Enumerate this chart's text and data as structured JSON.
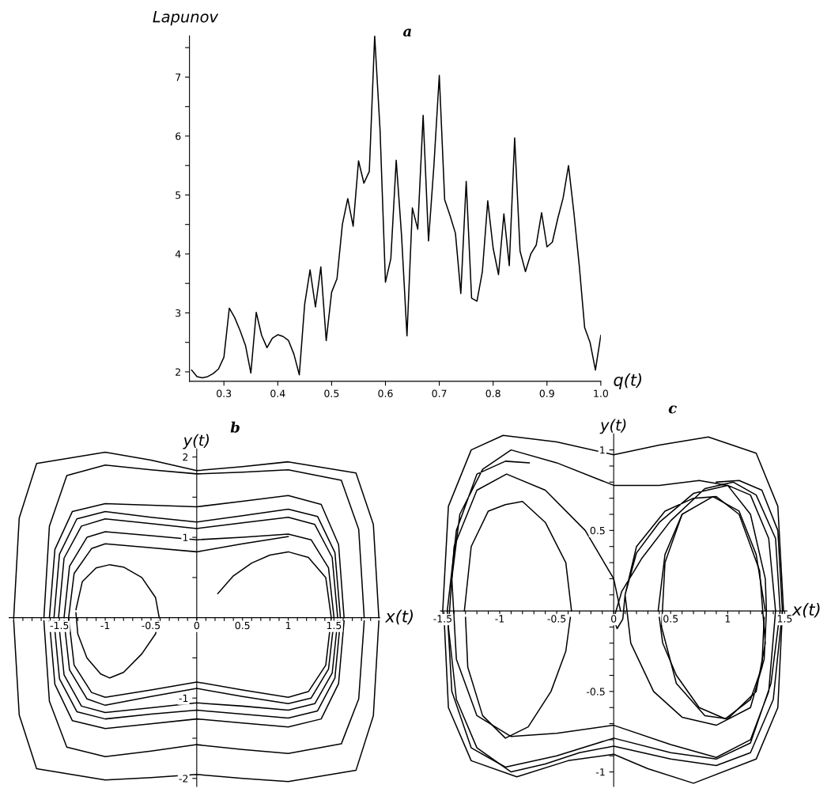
{
  "chart_data": [
    {
      "type": "line",
      "title": "a",
      "xlabel": "q(t)",
      "ylabel": "Lapunov",
      "xlim": [
        0.236,
        1.0
      ],
      "ylim": [
        1.84,
        7.7
      ],
      "xticks": [
        0.3,
        0.4,
        0.5,
        0.6,
        0.7,
        0.8,
        0.9,
        {
          "value": 1,
          "label": "1.0"
        }
      ],
      "yticks": [
        2,
        {
          "value": 2.5,
          "label": null
        },
        3,
        {
          "value": 3.5,
          "label": null
        },
        4,
        {
          "value": 4.5,
          "label": null
        },
        5,
        {
          "value": 5.5,
          "label": null
        },
        6,
        {
          "value": 6.5,
          "label": null
        },
        7,
        {
          "value": 7.5,
          "label": null
        }
      ],
      "x": [
        0.24,
        0.25,
        0.26,
        0.27,
        0.28,
        0.29,
        0.3,
        0.31,
        0.32,
        0.33,
        0.34,
        0.35,
        0.36,
        0.37,
        0.38,
        0.39,
        0.4,
        0.41,
        0.42,
        0.43,
        0.44,
        0.45,
        0.46,
        0.47,
        0.48,
        0.49,
        0.5,
        0.51,
        0.52,
        0.53,
        0.54,
        0.55,
        0.56,
        0.57,
        0.58,
        0.59,
        0.6,
        0.61,
        0.62,
        0.63,
        0.64,
        0.65,
        0.66,
        0.67,
        0.68,
        0.69,
        0.7,
        0.71,
        0.72,
        0.73,
        0.74,
        0.75,
        0.76,
        0.77,
        0.78,
        0.79,
        0.8,
        0.81,
        0.82,
        0.83,
        0.84,
        0.85,
        0.86,
        0.87,
        0.88,
        0.89,
        0.9,
        0.91,
        0.92,
        0.93,
        0.94,
        0.95,
        0.96,
        0.97,
        0.98,
        0.99,
        1.0
      ],
      "series": [
        {
          "color": "#000000",
          "values": [
            2.03,
            1.92,
            1.9,
            1.92,
            1.97,
            2.05,
            2.25,
            3.08,
            2.92,
            2.7,
            2.45,
            1.98,
            3.01,
            2.62,
            2.41,
            2.57,
            2.63,
            2.6,
            2.53,
            2.3,
            1.95,
            3.15,
            3.73,
            3.1,
            3.78,
            2.53,
            3.35,
            3.58,
            4.5,
            4.94,
            4.47,
            5.58,
            5.2,
            5.4,
            7.7,
            6.1,
            3.52,
            3.92,
            5.59,
            4.3,
            2.61,
            4.78,
            4.42,
            6.35,
            4.22,
            5.5,
            7.03,
            4.92,
            4.65,
            4.35,
            3.33,
            5.23,
            3.25,
            3.2,
            3.7,
            4.9,
            4.1,
            3.65,
            4.68,
            3.8,
            5.97,
            4.05,
            3.7,
            4.0,
            4.15,
            4.7,
            4.12,
            4.2,
            4.6,
            4.95,
            5.5,
            4.7,
            3.8,
            2.75,
            2.5,
            2.03,
            2.62
          ]
        }
      ]
    },
    {
      "type": "line",
      "title": "b",
      "xlabel": "x(t)",
      "ylabel": "y(t)",
      "xlim": [
        -2.05,
        2.0
      ],
      "ylim": [
        -2.1,
        2.1
      ],
      "xticks": [
        {
          "value": -2.0,
          "label": null
        },
        {
          "value": -1.9,
          "label": null
        },
        {
          "value": -1.8,
          "label": null
        },
        {
          "value": -1.7,
          "label": null
        },
        {
          "value": -1.6,
          "label": null
        },
        -1.5,
        {
          "value": -1.4,
          "label": null
        },
        {
          "value": -1.3,
          "label": null
        },
        {
          "value": -1.2,
          "label": null
        },
        {
          "value": -1.1,
          "label": null
        },
        -1,
        {
          "value": -0.9,
          "label": null
        },
        {
          "value": -0.8,
          "label": null
        },
        {
          "value": -0.7,
          "label": null
        },
        {
          "value": -0.6,
          "label": null
        },
        -0.5,
        {
          "value": -0.4,
          "label": null
        },
        {
          "value": -0.3,
          "label": null
        },
        {
          "value": -0.2,
          "label": null
        },
        {
          "value": -0.1,
          "label": null
        },
        0,
        {
          "value": 0.1,
          "label": null
        },
        {
          "value": 0.2,
          "label": null
        },
        {
          "value": 0.3,
          "label": null
        },
        {
          "value": 0.4,
          "label": null
        },
        0.5,
        {
          "value": 0.6,
          "label": null
        },
        {
          "value": 0.7,
          "label": null
        },
        {
          "value": 0.8,
          "label": null
        },
        {
          "value": 0.9,
          "label": null
        },
        1,
        {
          "value": 1.1,
          "label": null
        },
        {
          "value": 1.2,
          "label": null
        },
        {
          "value": 1.3,
          "label": null
        },
        {
          "value": 1.4,
          "label": null
        },
        1.5,
        {
          "value": 1.6,
          "label": null
        },
        {
          "value": 1.7,
          "label": null
        },
        {
          "value": 1.8,
          "label": null
        },
        {
          "value": 1.9,
          "label": null
        }
      ],
      "yticks": [
        2,
        {
          "value": 1.5,
          "label": null
        },
        1,
        {
          "value": 0.5,
          "label": null
        },
        {
          "value": -0.5,
          "label": null
        },
        -1,
        {
          "value": -1.5,
          "label": null
        },
        -2
      ],
      "series": [
        {
          "color": "#000000",
          "x": [
            -2.0,
            -1.94,
            -1.75,
            -1,
            -0.5,
            0,
            0.5,
            1,
            1.74,
            1.93,
            1.99
          ],
          "values": [
            0,
            1.24,
            1.92,
            2.06,
            1.96,
            1.83,
            1.88,
            1.94,
            1.8,
            1.16,
            0
          ]
        },
        {
          "color": "#000000",
          "x": [
            -2.0,
            -1.94,
            -1.75,
            -1,
            -0.5,
            0,
            0.5,
            1,
            1.74,
            1.93,
            1.99
          ],
          "values": [
            -0.04,
            -1.21,
            -1.88,
            -2.02,
            -1.99,
            -1.95,
            -2.0,
            -2.04,
            -1.9,
            -1.22,
            -0.04
          ]
        },
        {
          "color": "#000000",
          "x": [
            -1.67,
            -1.61,
            -1.42,
            -1,
            -0.5,
            0,
            0.5,
            1,
            1.58,
            1.77,
            1.83
          ],
          "values": [
            0,
            1.14,
            1.77,
            1.9,
            1.84,
            1.79,
            1.81,
            1.84,
            1.71,
            1.1,
            0
          ]
        },
        {
          "color": "#000000",
          "x": [
            -1.67,
            -1.61,
            -1.42,
            -1,
            -0.5,
            0,
            0.5,
            1,
            1.58,
            1.77,
            1.83
          ],
          "values": [
            -0.04,
            -1.04,
            -1.61,
            -1.73,
            -1.66,
            -1.58,
            -1.64,
            -1.69,
            -1.57,
            -1.01,
            -0.04
          ]
        },
        {
          "color": "#000000",
          "x": [
            -1.61,
            -1.55,
            -1.36,
            -1,
            -0.5,
            0,
            0.5,
            1,
            1.36,
            1.55,
            1.61
          ],
          "values": [
            0,
            0.85,
            1.32,
            1.42,
            1.4,
            1.38,
            1.45,
            1.52,
            1.41,
            0.91,
            0
          ]
        },
        {
          "color": "#000000",
          "x": [
            -1.61,
            -1.55,
            -1.36,
            -1,
            -0.5,
            0,
            0.5,
            1,
            1.36,
            1.55,
            1.61
          ],
          "values": [
            -0.04,
            -0.83,
            -1.28,
            -1.38,
            -1.32,
            -1.26,
            -1.31,
            -1.36,
            -1.26,
            -0.82,
            -0.04
          ]
        },
        {
          "color": "#000000",
          "x": [
            -1.56,
            -1.5,
            -1.31,
            -1,
            -0.5,
            0,
            0.5,
            1,
            1.32,
            1.51,
            1.57
          ],
          "values": [
            0,
            0.79,
            1.23,
            1.32,
            1.25,
            1.19,
            1.27,
            1.35,
            1.26,
            0.81,
            0
          ]
        },
        {
          "color": "#000000",
          "x": [
            -1.56,
            -1.5,
            -1.31,
            -1,
            -0.5,
            0,
            0.5,
            1,
            1.32,
            1.51,
            1.57
          ],
          "values": [
            -0.04,
            -0.76,
            -1.17,
            -1.26,
            -1.2,
            -1.15,
            -1.2,
            -1.25,
            -1.16,
            -0.75,
            -0.04
          ]
        },
        {
          "color": "#000000",
          "x": [
            -1.51,
            -1.45,
            -1.26,
            -1,
            -0.5,
            0,
            0.5,
            1,
            1.29,
            1.48,
            1.54
          ],
          "values": [
            0,
            0.74,
            1.14,
            1.23,
            1.17,
            1.11,
            1.18,
            1.25,
            1.16,
            0.75,
            0
          ]
        },
        {
          "color": "#000000",
          "x": [
            -1.51,
            -1.45,
            -1.26,
            -1,
            -0.5,
            0,
            0.5,
            1,
            1.29,
            1.48,
            1.54
          ],
          "values": [
            -0.04,
            -0.71,
            -1.1,
            -1.18,
            -1.12,
            -1.06,
            -1.1,
            -1.15,
            -1.07,
            -0.69,
            -0.04
          ]
        },
        {
          "color": "#000000",
          "x": [
            -1.45,
            -1.39,
            -1.2,
            -1,
            -0.5,
            0,
            0.5,
            1,
            1.25,
            1.44,
            1.5
          ],
          "values": [
            0,
            0.64,
            1.0,
            1.07,
            1.02,
            0.97,
            1.0,
            1.04,
            0.97,
            0.62,
            0
          ]
        },
        {
          "color": "#000000",
          "x": [
            -1.45,
            -1.39,
            -1.2,
            -1,
            -0.5,
            0,
            0.5,
            1,
            1.25,
            1.44,
            1.5
          ],
          "values": [
            -0.04,
            -0.65,
            -1.01,
            -1.09,
            -0.98,
            -0.88,
            -0.98,
            -1.07,
            -1.0,
            -0.64,
            -0.04
          ]
        },
        {
          "color": "#000000",
          "x": [
            0.23,
            0.4,
            0.6,
            0.8,
            1,
            1.22,
            1.41,
            1.47,
            1.41,
            1.22,
            1,
            0.5,
            0,
            -0.5,
            -1,
            -1.15,
            -1.34,
            -1.4,
            -1.34,
            -1.15,
            -1,
            -0.5,
            0,
            0.5,
            1
          ],
          "values": [
            0.3,
            0.52,
            0.68,
            0.78,
            0.82,
            0.75,
            0.5,
            0,
            -0.59,
            -0.92,
            -0.99,
            -0.9,
            -0.8,
            -0.9,
            -0.99,
            -0.93,
            -0.59,
            0,
            0.55,
            0.86,
            0.92,
            0.87,
            0.82,
            0.92,
            1.01
          ]
        },
        {
          "color": "#000000",
          "x": [
            -1.32,
            -1.25,
            -1.1,
            -0.95,
            -0.8,
            -0.6,
            -0.45,
            -0.41
          ],
          "values": [
            0.1,
            0.45,
            0.62,
            0.66,
            0.63,
            0.5,
            0.25,
            0
          ]
        },
        {
          "color": "#000000",
          "x": [
            -1.32,
            -1.3,
            -1.2,
            -1.05,
            -0.95,
            -0.8,
            -0.6,
            -0.45,
            -0.42
          ],
          "values": [
            0.06,
            -0.2,
            -0.5,
            -0.7,
            -0.75,
            -0.68,
            -0.45,
            -0.2,
            -0.04
          ]
        }
      ]
    },
    {
      "type": "line",
      "title": "c",
      "xlabel": "x(t)",
      "ylabel": "y(t)",
      "xlim": [
        -1.52,
        1.52
      ],
      "ylim": [
        -1.09,
        1.1
      ],
      "xticks": [
        -1.5,
        {
          "value": -1.4,
          "label": null
        },
        {
          "value": -1.3,
          "label": null
        },
        {
          "value": -1.2,
          "label": null
        },
        {
          "value": -1.1,
          "label": null
        },
        -1,
        {
          "value": -0.9,
          "label": null
        },
        {
          "value": -0.8,
          "label": null
        },
        {
          "value": -0.7,
          "label": null
        },
        {
          "value": -0.6,
          "label": null
        },
        -0.5,
        {
          "value": -0.4,
          "label": null
        },
        {
          "value": -0.3,
          "label": null
        },
        {
          "value": -0.2,
          "label": null
        },
        {
          "value": -0.1,
          "label": null
        },
        0,
        {
          "value": 0.1,
          "label": null
        },
        {
          "value": 0.2,
          "label": null
        },
        {
          "value": 0.3,
          "label": null
        },
        {
          "value": 0.4,
          "label": null
        },
        0.5,
        {
          "value": 0.6,
          "label": null
        },
        {
          "value": 0.7,
          "label": null
        },
        {
          "value": 0.8,
          "label": null
        },
        {
          "value": 0.9,
          "label": null
        },
        1,
        {
          "value": 1.1,
          "label": null
        },
        {
          "value": 1.2,
          "label": null
        },
        {
          "value": 1.3,
          "label": null
        },
        {
          "value": 1.4,
          "label": null
        },
        1.5
      ],
      "yticks": [
        1,
        {
          "value": 0.9,
          "label": null
        },
        {
          "value": 0.8,
          "label": null
        },
        {
          "value": 0.7,
          "label": null
        },
        {
          "value": 0.6,
          "label": null
        },
        0.5,
        {
          "value": 0.4,
          "label": null
        },
        {
          "value": 0.3,
          "label": null
        },
        {
          "value": 0.2,
          "label": null
        },
        {
          "value": 0.1,
          "label": null
        },
        {
          "value": -0.1,
          "label": null
        },
        {
          "value": -0.2,
          "label": null
        },
        {
          "value": -0.3,
          "label": null
        },
        {
          "value": -0.4,
          "label": null
        },
        -0.5,
        {
          "value": -0.6,
          "label": null
        },
        {
          "value": -0.7,
          "label": null
        },
        {
          "value": -0.8,
          "label": null
        },
        {
          "value": -0.9,
          "label": null
        },
        -1
      ],
      "series": [
        {
          "color": "#000000",
          "x": [
            -1.5,
            -1.45,
            -1.25,
            -0.97,
            -0.5,
            0,
            0.4,
            0.83,
            1.25,
            1.44,
            1.49
          ],
          "values": [
            0,
            0.65,
            1.0,
            1.09,
            1.05,
            0.97,
            1.03,
            1.08,
            0.98,
            0.65,
            0
          ]
        },
        {
          "color": "#000000",
          "x": [
            -1.49,
            -1.45,
            -1.25,
            -0.85,
            -0.4,
            0,
            0.3,
            0.7,
            1.25,
            1.44,
            1.48
          ],
          "values": [
            -0.01,
            -0.6,
            -0.93,
            -1.03,
            -0.93,
            -0.89,
            -0.98,
            -1.07,
            -0.92,
            -0.6,
            -0.01
          ]
        },
        {
          "color": "#000000",
          "x": [
            -0.74,
            -0.95,
            -1.2,
            -1.38,
            -1.46,
            -1.42,
            -1.25,
            -0.95,
            -0.5,
            0,
            0.5,
            0.9,
            1.2,
            1.38,
            1.46,
            1.42,
            1.25,
            1.05,
            0.8,
            0.5,
            0.25,
            0.07,
            0.0,
            0.03,
            0.08,
            0.1,
            0.2,
            0.4,
            0.7,
            1.0,
            1.2,
            1.36,
            1.42,
            1.36,
            1.2,
            0.9,
            0.5,
            0,
            -0.5,
            -0.9,
            -1.2,
            -1.38,
            -1.42,
            -1.35,
            -1.15,
            -0.9,
            -0.5,
            0,
            0.4,
            0.75,
            1.0,
            1.2,
            1.33,
            1.34,
            1.32,
            1.2,
            0.9,
            0.6,
            0.35,
            0.15,
            0.1,
            0.2,
            0.45,
            0.7,
            0.9,
            1.1,
            1.28,
            1.33,
            1.25,
            1.0,
            0.8,
            0.55,
            0.42,
            0.45,
            0.6
          ],
          "values": [
            0.92,
            0.93,
            0.85,
            0.5,
            0,
            -0.5,
            -0.85,
            -0.97,
            -0.9,
            -0.79,
            -0.88,
            -0.92,
            -0.82,
            -0.45,
            0,
            0.45,
            0.72,
            0.8,
            0.76,
            0.56,
            0.33,
            0.12,
            -0.05,
            -0.11,
            -0.05,
            0.1,
            0.36,
            0.55,
            0.73,
            0.78,
            0.72,
            0.45,
            0,
            -0.5,
            -0.8,
            -0.91,
            -0.83,
            -0.71,
            -0.76,
            -0.78,
            -0.65,
            -0.3,
            0.2,
            0.6,
            0.88,
            1.0,
            0.92,
            0.78,
            0.78,
            0.81,
            0.78,
            0.6,
            0.2,
            0,
            -0.3,
            -0.6,
            -0.71,
            -0.66,
            -0.5,
            -0.2,
            0.1,
            0.4,
            0.62,
            0.7,
            0.71,
            0.6,
            0.25,
            -0.2,
            -0.5,
            -0.67,
            -0.65,
            -0.45,
            -0.1,
            0.3,
            0.6
          ]
        },
        {
          "color": "#000000",
          "x": [
            0.06,
            0.0,
            -0.25,
            -0.6,
            -0.94,
            -1.2,
            -1.4,
            -1.45,
            -1.38,
            -1.2,
            -0.9,
            -0.6,
            -0.3,
            0,
            0.5,
            0.9,
            1.2,
            1.4,
            1.48,
            1.44,
            1.3,
            1.1,
            0.9
          ],
          "values": [
            0.0,
            0.2,
            0.5,
            0.75,
            0.85,
            0.75,
            0.4,
            -0.1,
            -0.55,
            -0.85,
            -1.0,
            -0.95,
            -0.88,
            -0.84,
            -0.92,
            -0.96,
            -0.88,
            -0.55,
            0,
            0.5,
            0.75,
            0.81,
            0.8
          ]
        },
        {
          "color": "#000000",
          "x": [
            -1.31,
            -1.25,
            -1.1,
            -0.95,
            -0.8,
            -0.6,
            -0.42,
            -0.37
          ],
          "values": [
            0,
            0.4,
            0.62,
            0.66,
            0.68,
            0.55,
            0.3,
            0
          ]
        },
        {
          "color": "#000000",
          "x": [
            -1.3,
            -1.28,
            -1.15,
            -0.95,
            -0.75,
            -0.55,
            -0.42,
            -0.38
          ],
          "values": [
            -0.04,
            -0.35,
            -0.65,
            -0.79,
            -0.72,
            -0.5,
            -0.25,
            -0.04
          ]
        },
        {
          "color": "#000000",
          "x": [
            0.39,
            0.45,
            0.6,
            0.87,
            1.1,
            1.25,
            1.33
          ],
          "values": [
            0,
            0.35,
            0.6,
            0.71,
            0.62,
            0.35,
            0
          ]
        },
        {
          "color": "#000000",
          "x": [
            0.4,
            0.43,
            0.55,
            0.75,
            0.98,
            1.2,
            1.3,
            1.32
          ],
          "values": [
            -0.04,
            -0.2,
            -0.4,
            -0.6,
            -0.67,
            -0.55,
            -0.35,
            -0.04
          ]
        }
      ]
    }
  ]
}
